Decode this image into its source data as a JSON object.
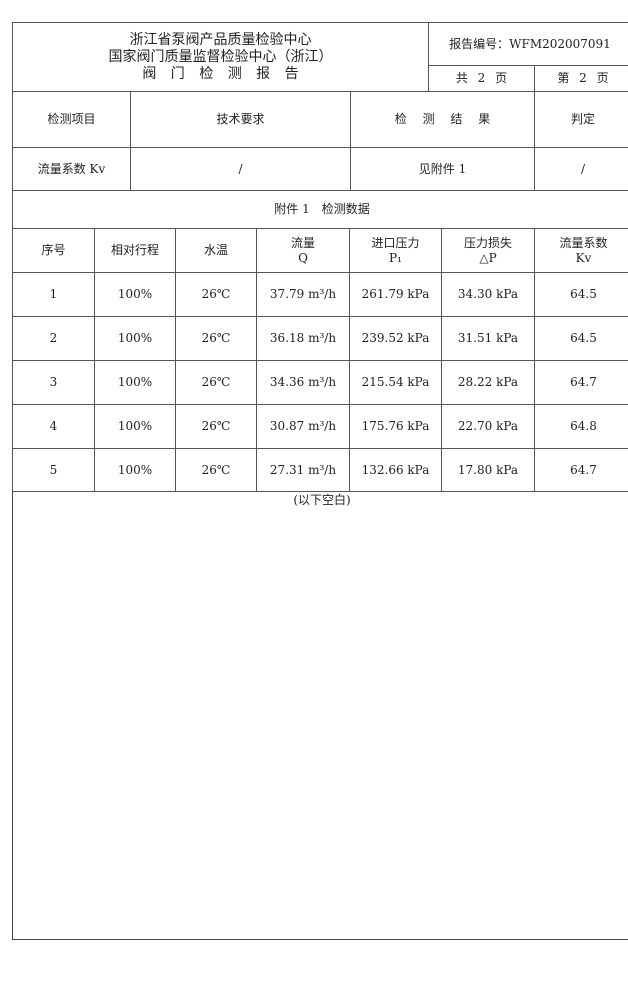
{
  "header": {
    "org_line1": "浙江省泵阀产品质量检验中心",
    "org_line2": "国家阀门质量监督检验中心（浙江）",
    "report_title": "阀 门 检 测 报 告",
    "report_no": "报告编号：WFM202007091",
    "total_pages": "共 2 页",
    "page_no": "第 2 页"
  },
  "summary": {
    "headers": [
      "检测项目",
      "技术要求",
      "检 测 结 果",
      "判定"
    ],
    "row": {
      "item": "流量系数 Kv",
      "requirement": "/",
      "result": "见附件 1",
      "judgement": "/"
    }
  },
  "annex": {
    "title": "附件 1　检测数据",
    "headers": [
      {
        "l1": "序号",
        "l2": ""
      },
      {
        "l1": "相对行程",
        "l2": ""
      },
      {
        "l1": "水温",
        "l2": ""
      },
      {
        "l1": "流量",
        "l2": "Q"
      },
      {
        "l1": "进口压力",
        "l2": "P₁"
      },
      {
        "l1": "压力损失",
        "l2": "△P"
      },
      {
        "l1": "流量系数",
        "l2": "Kv"
      }
    ],
    "rows": [
      [
        "1",
        "100%",
        "26℃",
        "37.79 m³/h",
        "261.79 kPa",
        "34.30 kPa",
        "64.5"
      ],
      [
        "2",
        "100%",
        "26℃",
        "36.18 m³/h",
        "239.52 kPa",
        "31.51 kPa",
        "64.5"
      ],
      [
        "3",
        "100%",
        "26℃",
        "34.36 m³/h",
        "215.54 kPa",
        "28.22 kPa",
        "64.7"
      ],
      [
        "4",
        "100%",
        "26℃",
        "30.87 m³/h",
        "175.76 kPa",
        "22.70 kPa",
        "64.8"
      ],
      [
        "5",
        "100%",
        "26℃",
        "27.31 m³/h",
        "132.66 kPa",
        "17.80 kPa",
        "64.7"
      ]
    ],
    "blank_note": "(以下空白)"
  }
}
